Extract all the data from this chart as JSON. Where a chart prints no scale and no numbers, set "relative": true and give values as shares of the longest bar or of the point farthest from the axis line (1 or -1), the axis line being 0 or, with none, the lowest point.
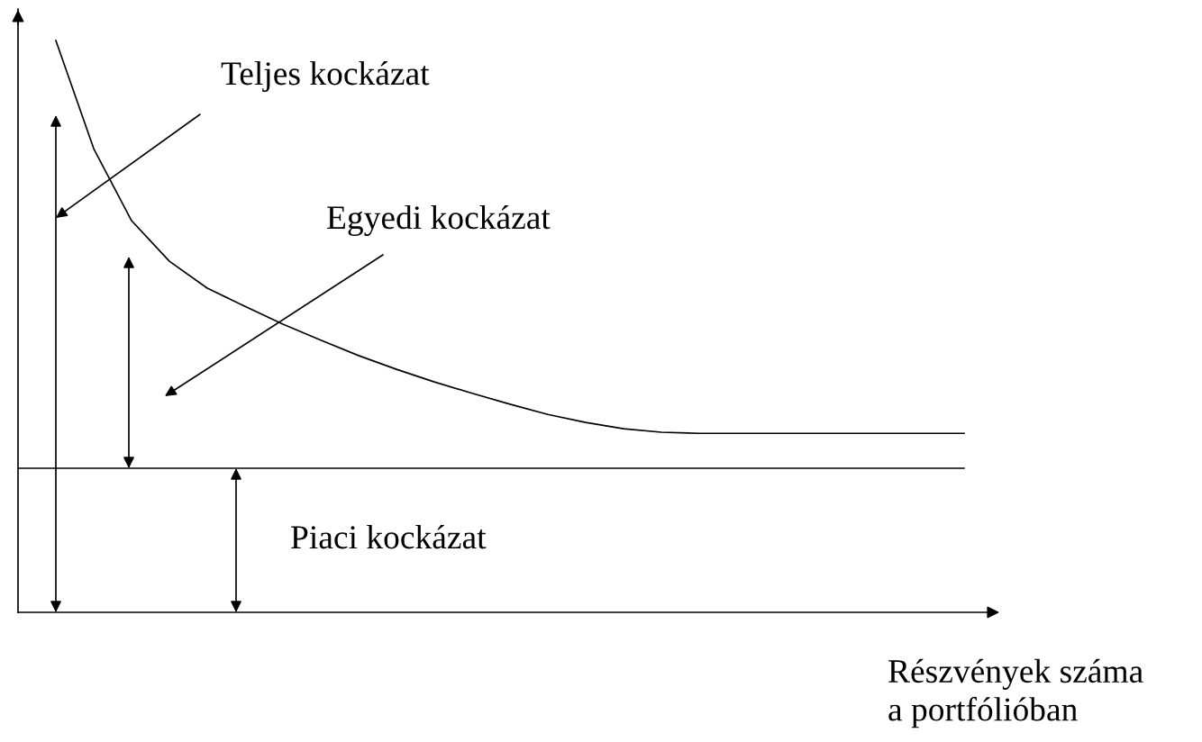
{
  "chart_data": {
    "type": "line",
    "relative": true,
    "xlabel": "Részvények száma\na portfólióban",
    "categories": [
      null,
      null,
      null,
      null,
      null,
      null,
      null,
      null,
      null,
      null,
      null,
      null,
      null,
      null,
      null,
      null,
      null,
      null,
      null,
      null,
      null,
      null,
      null,
      null,
      null,
      null
    ],
    "series": [
      {
        "color": "#000000",
        "values": [
          null,
          1.0,
          0.811,
          0.685,
          0.614,
          0.567,
          0.535,
          0.504,
          0.476,
          0.449,
          0.425,
          0.403,
          0.383,
          0.364,
          0.346,
          0.332,
          0.321,
          0.315,
          0.313,
          0.313,
          0.313,
          0.313,
          0.313,
          0.313,
          0.313,
          0.313
        ]
      },
      {
        "color": "#000000",
        "values": [
          0.252,
          0.252,
          0.252,
          0.252,
          0.252,
          0.252,
          0.252,
          0.252,
          0.252,
          0.252,
          0.252,
          0.252,
          0.252,
          0.252,
          0.252,
          0.252,
          0.252,
          0.252,
          0.252,
          0.252,
          0.252,
          0.252,
          0.252,
          0.252,
          0.252,
          0.252
        ]
      }
    ],
    "annotations": [
      "Teljes kockázat",
      "Egyedi kockázat",
      "Piaci kockázat"
    ],
    "legend": false,
    "marker": "none",
    "line_style": "solid",
    "tick_labels": false
  }
}
